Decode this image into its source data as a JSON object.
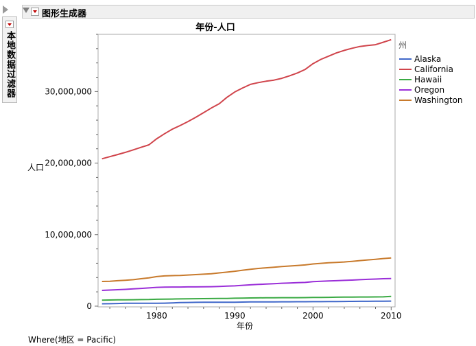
{
  "filter_panel": {
    "label": "本地数据过滤器"
  },
  "header": {
    "title": "图形生成器"
  },
  "where_clause": "Where(地区 = Pacific)",
  "chart_data": {
    "type": "line",
    "title": "年份-人口",
    "xlabel": "年份",
    "ylabel": "人口",
    "xlim": [
      1972.5,
      2010.5
    ],
    "ylim": [
      -100000,
      38000000
    ],
    "x_ticks": [
      1980,
      1990,
      2000,
      2010
    ],
    "y_ticks": [
      0,
      10000000,
      20000000,
      30000000
    ],
    "y_tick_labels": [
      "0",
      "10,000,000",
      "20,000,000",
      "30,000,000"
    ],
    "grid": false,
    "legend": {
      "title": "州",
      "placement": "right"
    },
    "x": [
      1973,
      1974,
      1975,
      1976,
      1977,
      1978,
      1979,
      1980,
      1981,
      1982,
      1983,
      1984,
      1985,
      1986,
      1987,
      1988,
      1989,
      1990,
      1991,
      1992,
      1993,
      1994,
      1995,
      1996,
      1997,
      1998,
      1999,
      2000,
      2001,
      2002,
      2003,
      2004,
      2005,
      2006,
      2007,
      2008,
      2009,
      2010
    ],
    "series": [
      {
        "name": "Alaska",
        "color": "#3f67c9",
        "values": [
          330000,
          341000,
          372000,
          400000,
          412000,
          412000,
          413000,
          402000,
          418000,
          449000,
          499000,
          514000,
          532000,
          544000,
          539000,
          542000,
          547000,
          553000,
          570000,
          587000,
          597000,
          603000,
          604000,
          608000,
          612000,
          617000,
          622000,
          627000,
          633000,
          641000,
          648000,
          659000,
          667000,
          675000,
          680000,
          687000,
          698000,
          710000
        ]
      },
      {
        "name": "California",
        "color": "#d0444b",
        "values": [
          20600000,
          20900000,
          21200000,
          21500000,
          21850000,
          22200000,
          22550000,
          23400000,
          24100000,
          24750000,
          25250000,
          25800000,
          26400000,
          27050000,
          27700000,
          28300000,
          29200000,
          29950000,
          30500000,
          31000000,
          31250000,
          31450000,
          31600000,
          31850000,
          32200000,
          32600000,
          33100000,
          33900000,
          34500000,
          34950000,
          35400000,
          35750000,
          36050000,
          36300000,
          36450000,
          36550000,
          36900000,
          37250000
        ]
      },
      {
        "name": "Hawaii",
        "color": "#3aaa43",
        "values": [
          840000,
          860000,
          880000,
          890000,
          900000,
          915000,
          930000,
          965000,
          980000,
          995000,
          1010000,
          1030000,
          1040000,
          1050000,
          1060000,
          1070000,
          1080000,
          1108000,
          1130000,
          1150000,
          1160000,
          1175000,
          1180000,
          1185000,
          1190000,
          1190000,
          1195000,
          1212000,
          1225000,
          1235000,
          1250000,
          1260000,
          1270000,
          1280000,
          1285000,
          1290000,
          1300000,
          1360000
        ]
      },
      {
        "name": "Oregon",
        "color": "#9a2ed8",
        "values": [
          2200000,
          2250000,
          2300000,
          2350000,
          2410000,
          2480000,
          2550000,
          2630000,
          2660000,
          2670000,
          2670000,
          2690000,
          2690000,
          2700000,
          2720000,
          2750000,
          2800000,
          2840000,
          2910000,
          2980000,
          3040000,
          3090000,
          3140000,
          3200000,
          3240000,
          3280000,
          3320000,
          3430000,
          3470000,
          3520000,
          3560000,
          3600000,
          3640000,
          3700000,
          3750000,
          3790000,
          3830000,
          3860000
        ]
      },
      {
        "name": "Washington",
        "color": "#c87a2c",
        "values": [
          3450000,
          3480000,
          3560000,
          3620000,
          3700000,
          3830000,
          3960000,
          4130000,
          4230000,
          4270000,
          4300000,
          4350000,
          4410000,
          4470000,
          4540000,
          4650000,
          4760000,
          4880000,
          5020000,
          5150000,
          5270000,
          5360000,
          5450000,
          5530000,
          5610000,
          5690000,
          5760000,
          5900000,
          5980000,
          6060000,
          6120000,
          6180000,
          6260000,
          6370000,
          6460000,
          6550000,
          6660000,
          6740000
        ]
      }
    ]
  }
}
